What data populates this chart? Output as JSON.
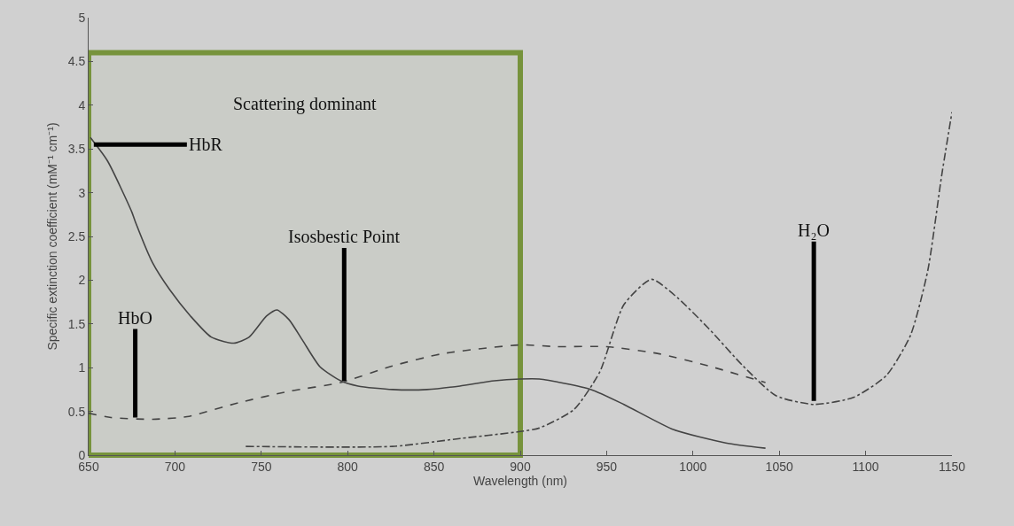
{
  "chart_data": {
    "type": "line",
    "xlabel": "Wavelength (nm)",
    "ylabel": "Specific extinction coefficient (mM⁻¹ cm⁻¹)",
    "xlim": [
      650,
      1150
    ],
    "xticks": [
      650,
      700,
      750,
      800,
      850,
      900,
      950,
      1000,
      1050,
      1100,
      1150
    ],
    "ylim": [
      0,
      5
    ],
    "yticks": [
      0,
      0.5,
      1,
      1.5,
      2,
      2.5,
      3,
      3.5,
      4,
      4.5,
      5
    ],
    "grid": false,
    "marker": "none",
    "series": [
      {
        "color": "#444444",
        "line_style": "solid",
        "x": [
          651,
          661,
          675,
          677,
          687,
          697,
          709,
          721,
          734,
          743,
          753,
          759,
          766,
          774,
          784,
          796,
          806,
          826,
          846,
          865,
          885,
          900,
          911,
          941,
          960,
          989,
          1019,
          1042
        ],
        "values": [
          3.63,
          3.36,
          2.78,
          2.67,
          2.2,
          1.89,
          1.59,
          1.35,
          1.28,
          1.35,
          1.59,
          1.66,
          1.55,
          1.31,
          1.01,
          0.85,
          0.79,
          0.75,
          0.75,
          0.79,
          0.85,
          0.87,
          0.87,
          0.75,
          0.58,
          0.29,
          0.14,
          0.08
        ]
      },
      {
        "color": "#444444",
        "line_style": "dashed",
        "x": [
          650,
          663,
          687,
          707,
          737,
          766,
          796,
          826,
          855,
          900,
          921,
          950,
          980,
          1009,
          1042
        ],
        "values": [
          0.48,
          0.43,
          0.41,
          0.44,
          0.6,
          0.73,
          0.83,
          1.02,
          1.16,
          1.26,
          1.24,
          1.24,
          1.16,
          1.02,
          0.83
        ]
      },
      {
        "color": "#444444",
        "line_style": "dashdot",
        "x": [
          741,
          826,
          865,
          900,
          911,
          931,
          946,
          960,
          976,
          991,
          1009,
          1029,
          1048,
          1070,
          1093,
          1112,
          1126,
          1136,
          1144,
          1150
        ],
        "values": [
          0.1,
          0.1,
          0.19,
          0.27,
          0.31,
          0.52,
          0.95,
          1.72,
          2.01,
          1.8,
          1.45,
          1.02,
          0.68,
          0.58,
          0.66,
          0.91,
          1.37,
          2.11,
          3.19,
          3.92
        ]
      }
    ],
    "bands": [
      {
        "axis": "x",
        "from": 650,
        "to": 900,
        "label": "Scattering dominant",
        "color": "#77933c"
      }
    ],
    "annotations": [
      {
        "text": "HbR",
        "x": 653,
        "y": 3.55
      },
      {
        "text": "Isosbestic Point",
        "x": 798,
        "y": 0.85
      },
      {
        "text": "HbO",
        "x": 677,
        "y": 0.43
      },
      {
        "text": "H₂O",
        "x": 1070,
        "y": 0.62
      }
    ]
  }
}
